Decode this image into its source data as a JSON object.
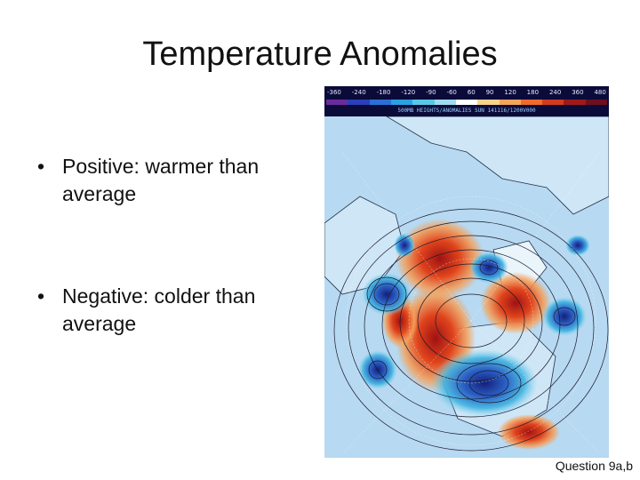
{
  "slide": {
    "title": "Temperature Anomalies",
    "bullets": [
      "Positive: warmer than average",
      "Negative: colder than average"
    ],
    "bullet_symbol": "•",
    "question_ref": "Question 9a,b"
  },
  "map": {
    "colorbar_ticks": [
      "-360",
      "-240",
      "-180",
      "-120",
      "-90",
      "-60",
      "60",
      "90",
      "120",
      "180",
      "240",
      "360",
      "480"
    ],
    "colorbar_colors": [
      "#6a2c9a",
      "#2a3fb8",
      "#2b6fd6",
      "#2aa1e0",
      "#59c8e6",
      "#9fdcef",
      "#ffffff",
      "#f7d38a",
      "#f4a35a",
      "#ef6a2c",
      "#d43a1f",
      "#9e1a1a",
      "#6d0f1f"
    ],
    "caption": "500MB HEIGHTS/ANOMALIES SUN 141116/1200V000",
    "colors": {
      "ocean": "#b7d9f1",
      "land_outline": "#1c2a3a",
      "warm": "#e24a1f",
      "warm_core": "#b01a12",
      "cold": "#2b5fc4",
      "cold_core": "#1b2a8a",
      "cool_light": "#4fc0e0"
    }
  }
}
